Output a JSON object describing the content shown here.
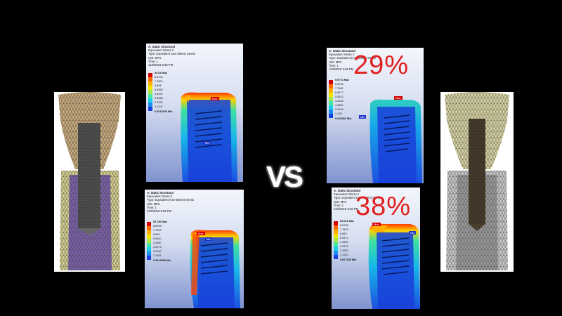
{
  "vs_label": "VS",
  "colors": {
    "background": "#000000",
    "max_tag": "#d40000",
    "min_tag": "#1c34c8",
    "percentage_text": "#e21e1e",
    "legend_scale": [
      "#d40000",
      "#ff6a00",
      "#ffb300",
      "#f2e600",
      "#a6e84a",
      "#48e8a0",
      "#18d0e8",
      "#1a8ff0",
      "#1a40e0",
      "#1a1ab0"
    ]
  },
  "panels": {
    "top_left": {
      "header": [
        "A: Static Structural",
        "Equivalent Stress 2",
        "Type: Equivalent (von-Mises) Stress",
        "Unit: MPa",
        "Time: 1",
        "11/8/2018 5:58 PM"
      ],
      "legend": [
        "34.04 Max",
        "8.8708",
        "7.7824",
        "6.694",
        "5.5456",
        "4.4572",
        "3.3288",
        "2.2284",
        "1.1119",
        "0.0015153 Min"
      ],
      "max_tag": "Max",
      "min_tag": "Min"
    },
    "bottom_left": {
      "header": [
        "A: Static Structural",
        "Equivalent Stress 2",
        "Type: Equivalent (von-Mises) Stress",
        "Unit: MPa",
        "Time: 1",
        "11/8/2018 5:56 PM"
      ],
      "legend": [
        "52.786 Max",
        "8.8708",
        "7.7823",
        "6.693",
        "5.5440",
        "4.4550",
        "3.3275",
        "2.2190",
        "1.1101",
        "0.0014599 Min"
      ],
      "max_tag": "Max",
      "min_tag": "Min"
    },
    "top_right": {
      "header": [
        "A: Static Structural",
        "Equivalent Stress 2",
        "Type: Equivalent (von-Mises) Stress",
        "Unit: MPa",
        "Time: 1",
        "11/8/2018 3:48 PM"
      ],
      "legend": [
        "9.9772 Max",
        "8.8706",
        "7.7662",
        "6.6577",
        "5.5512",
        "4.4446",
        "3.3381",
        "2.2316",
        "1.125",
        "0.018481 Min"
      ],
      "max_tag": "Max",
      "min_tag": "Min",
      "percentage": "29%"
    },
    "bottom_right": {
      "header": [
        "A: Static Structural",
        "Equivalent Stress 2",
        "Type: Equivalent (von-Mises) Stress",
        "Unit: MPa",
        "Time: 1",
        "11/8/2018 5:45 PM"
      ],
      "legend": [
        "20.611 Max",
        "8.8708",
        "7.7823",
        "6.693",
        "5.5471",
        "4.4590",
        "3.3373",
        "2.2290",
        "1.1101",
        "0.007156 Min"
      ],
      "max_tag": "Max",
      "min_tag": "Min",
      "percentage": "38%"
    }
  }
}
